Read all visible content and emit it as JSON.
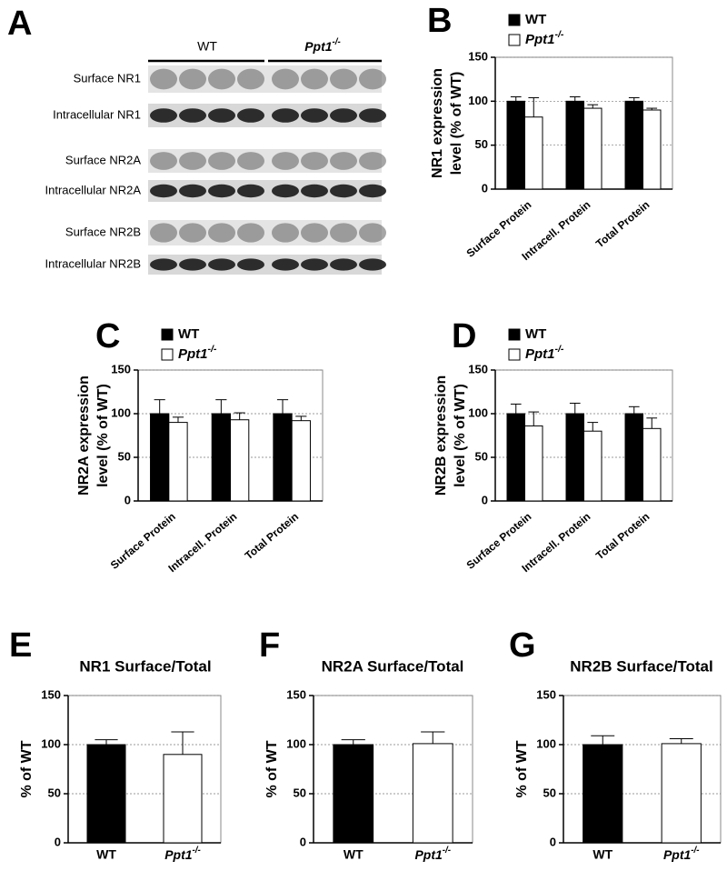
{
  "blot": {
    "panel": "A",
    "groups": [
      "WT",
      "Ppt1-/-"
    ],
    "rows": [
      "Surface NR1",
      "Intracellular NR1",
      "Surface NR2A",
      "Intracellular NR2A",
      "Surface NR2B",
      "Intracellular NR2B"
    ]
  },
  "chart_data": [
    {
      "type": "bar",
      "panel": "B",
      "ylabel": [
        "NR1 expression",
        "level (% of WT)"
      ],
      "categories": [
        "Surface Protein",
        "Intracell. Protein",
        "Total Protein"
      ],
      "series": [
        {
          "name": "WT",
          "color": "#000000",
          "values": [
            100,
            100,
            100
          ],
          "errors": [
            5,
            5,
            4
          ]
        },
        {
          "name": "Ppt1-/-",
          "color": "#ffffff",
          "values": [
            82,
            92,
            90
          ],
          "errors": [
            22,
            4,
            2
          ]
        }
      ],
      "ylim": [
        0,
        150
      ],
      "yticks": [
        0,
        50,
        100,
        150
      ],
      "grid": true,
      "legend": "top-left"
    },
    {
      "type": "bar",
      "panel": "C",
      "ylabel": [
        "NR2A expression",
        "level (% of WT)"
      ],
      "categories": [
        "Surface Protein",
        "Intracell. Protein",
        "Total Protein"
      ],
      "series": [
        {
          "name": "WT",
          "color": "#000000",
          "values": [
            100,
            100,
            100
          ],
          "errors": [
            16,
            16,
            16
          ]
        },
        {
          "name": "Ppt1-/-",
          "color": "#ffffff",
          "values": [
            90,
            93,
            92
          ],
          "errors": [
            6,
            8,
            5
          ]
        }
      ],
      "ylim": [
        0,
        150
      ],
      "yticks": [
        0,
        50,
        100,
        150
      ],
      "grid": true,
      "legend": "top-left"
    },
    {
      "type": "bar",
      "panel": "D",
      "ylabel": [
        "NR2B expression",
        "level (% of WT)"
      ],
      "categories": [
        "Surface Protein",
        "Intracell. Protein",
        "Total Protein"
      ],
      "series": [
        {
          "name": "WT",
          "color": "#000000",
          "values": [
            100,
            100,
            100
          ],
          "errors": [
            11,
            12,
            8
          ]
        },
        {
          "name": "Ppt1-/-",
          "color": "#ffffff",
          "values": [
            86,
            80,
            83
          ],
          "errors": [
            16,
            10,
            12
          ]
        }
      ],
      "ylim": [
        0,
        150
      ],
      "yticks": [
        0,
        50,
        100,
        150
      ],
      "grid": true,
      "legend": "top-left"
    },
    {
      "type": "bar",
      "panel": "E",
      "title": "NR1 Surface/Total",
      "ylabel": [
        "% of WT"
      ],
      "categories": [
        "WT",
        "Ppt1-/-"
      ],
      "values": [
        100,
        90
      ],
      "errors": [
        5,
        23
      ],
      "colors": [
        "#000000",
        "#ffffff"
      ],
      "ylim": [
        0,
        150
      ],
      "yticks": [
        0,
        50,
        100,
        150
      ],
      "grid": true
    },
    {
      "type": "bar",
      "panel": "F",
      "title": "NR2A Surface/Total",
      "ylabel": [
        "% of WT"
      ],
      "categories": [
        "WT",
        "Ppt1-/-"
      ],
      "values": [
        100,
        101
      ],
      "errors": [
        5,
        12
      ],
      "colors": [
        "#000000",
        "#ffffff"
      ],
      "ylim": [
        0,
        150
      ],
      "yticks": [
        0,
        50,
        100,
        150
      ],
      "grid": true
    },
    {
      "type": "bar",
      "panel": "G",
      "title": "NR2B Surface/Total",
      "ylabel": [
        "% of WT"
      ],
      "categories": [
        "WT",
        "Ppt1-/-"
      ],
      "values": [
        100,
        101
      ],
      "errors": [
        9,
        5
      ],
      "colors": [
        "#000000",
        "#ffffff"
      ],
      "ylim": [
        0,
        150
      ],
      "yticks": [
        0,
        50,
        100,
        150
      ],
      "grid": true
    }
  ]
}
